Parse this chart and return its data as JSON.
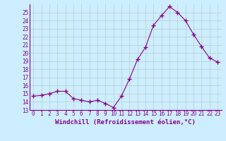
{
  "x": [
    0,
    1,
    2,
    3,
    4,
    5,
    6,
    7,
    8,
    9,
    10,
    11,
    12,
    13,
    14,
    15,
    16,
    17,
    18,
    19,
    20,
    21,
    22,
    23
  ],
  "y": [
    14.7,
    14.8,
    15.0,
    15.3,
    15.3,
    14.4,
    14.2,
    14.0,
    14.2,
    13.8,
    13.3,
    14.7,
    16.8,
    19.2,
    20.7,
    23.4,
    24.6,
    25.7,
    25.0,
    24.0,
    22.3,
    20.8,
    19.4,
    18.9
  ],
  "line_color": "#880088",
  "marker": "+",
  "marker_size": 4,
  "bg_color": "#cceeff",
  "grid_color": "#bbcccc",
  "xlabel": "Windchill (Refroidissement éolien,°C)",
  "xlabel_color": "#880088",
  "tick_color": "#880088",
  "axis_color": "#880088",
  "ylim": [
    13,
    26
  ],
  "yticks": [
    13,
    14,
    15,
    16,
    17,
    18,
    19,
    20,
    21,
    22,
    23,
    24,
    25
  ],
  "xlim": [
    -0.5,
    23.5
  ],
  "xticks": [
    0,
    1,
    2,
    3,
    4,
    5,
    6,
    7,
    8,
    9,
    10,
    11,
    12,
    13,
    14,
    15,
    16,
    17,
    18,
    19,
    20,
    21,
    22,
    23
  ],
  "tick_fontsize": 5.5,
  "xlabel_fontsize": 6.5,
  "linewidth": 0.8
}
